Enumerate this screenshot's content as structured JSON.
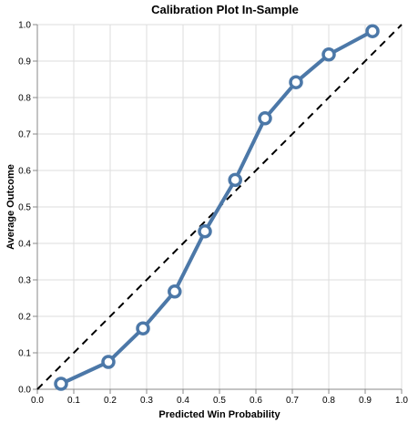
{
  "chart_data": {
    "type": "line",
    "title": "Calibration Plot In-Sample",
    "xlabel": "Predicted Win Probability",
    "ylabel": "Average Outcome",
    "xlim": [
      0,
      1
    ],
    "ylim": [
      0,
      1
    ],
    "x_ticks": [
      "0.0",
      "0.1",
      "0.2",
      "0.3",
      "0.4",
      "0.5",
      "0.6",
      "0.7",
      "0.8",
      "0.9",
      "1.0"
    ],
    "y_ticks": [
      "0.0",
      "0.1",
      "0.2",
      "0.3",
      "0.4",
      "0.5",
      "0.6",
      "0.7",
      "0.8",
      "0.9",
      "1.0"
    ],
    "grid": true,
    "reference_line": {
      "x": [
        0,
        1
      ],
      "y": [
        0,
        1
      ],
      "style": "dashed",
      "color": "#000000"
    },
    "series": [
      {
        "color": "#4c78a8",
        "points": [
          {
            "x": 0.065,
            "y": 0.015
          },
          {
            "x": 0.195,
            "y": 0.075
          },
          {
            "x": 0.29,
            "y": 0.167
          },
          {
            "x": 0.377,
            "y": 0.268
          },
          {
            "x": 0.46,
            "y": 0.433
          },
          {
            "x": 0.543,
            "y": 0.574
          },
          {
            "x": 0.625,
            "y": 0.743
          },
          {
            "x": 0.71,
            "y": 0.842
          },
          {
            "x": 0.8,
            "y": 0.918
          },
          {
            "x": 0.92,
            "y": 0.982
          }
        ]
      }
    ]
  }
}
